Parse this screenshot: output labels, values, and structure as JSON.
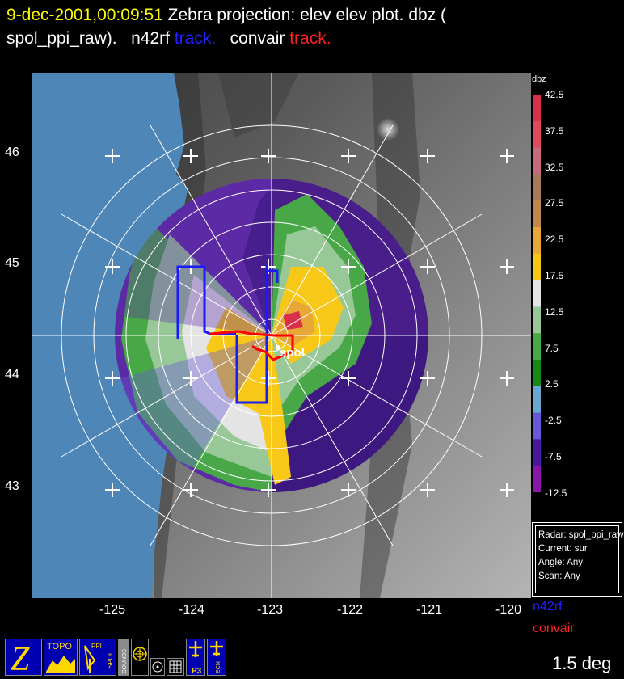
{
  "header": {
    "datetime": "9-dec-2001,00:09:51",
    "projection_text": "Zebra projection: elev elev  plot.  dbz (",
    "source_text": "spol_ppi_raw).",
    "platform1": "n42rf",
    "platform1_track": "track.",
    "platform2": "convair",
    "platform2_track": "track."
  },
  "map": {
    "radar_label": "spol",
    "lat_labels": [
      "46",
      "45",
      "44",
      "43"
    ],
    "lon_labels": [
      "-125",
      "-124",
      "-123",
      "-122",
      "-121",
      "-120"
    ],
    "colors": {
      "ocean": "#4f86b8",
      "n42rf_track": "#1a1aff",
      "convair_track": "#ff0000",
      "grid": "#ffffff"
    }
  },
  "legend": {
    "unit": "dbz",
    "labels": [
      "42.5",
      "37.5",
      "32.5",
      "27.5",
      "22.5",
      "17.5",
      "12.5",
      "7.5",
      "2.5",
      "-2.5",
      "-7.5",
      "-12.5"
    ],
    "colors": [
      "#d8304a",
      "#e04860",
      "#c86a7e",
      "#a8785a",
      "#c08850",
      "#e8a838",
      "#f8c818",
      "#e4e4e4",
      "#98c898",
      "#48a848",
      "#188818",
      "#68a8d0",
      "#6858d8",
      "#4818a0",
      "#8818a8"
    ]
  },
  "info_box": {
    "radar": "Radar: spol_ppi_raw",
    "current": "Current: sur",
    "angle": "Angle: Any",
    "scan": "Scan: Any"
  },
  "tracks_legend": {
    "n42rf": "n42rf",
    "convair": "convair"
  },
  "angle": "1.5 deg",
  "toolbar": {
    "topo_label": "TOPO",
    "ppi_label": "PPI",
    "spol_label": "SPOL",
    "sounds_label": "SOUNDS",
    "p3_label": "P3",
    "ecn_label": "ECN"
  }
}
